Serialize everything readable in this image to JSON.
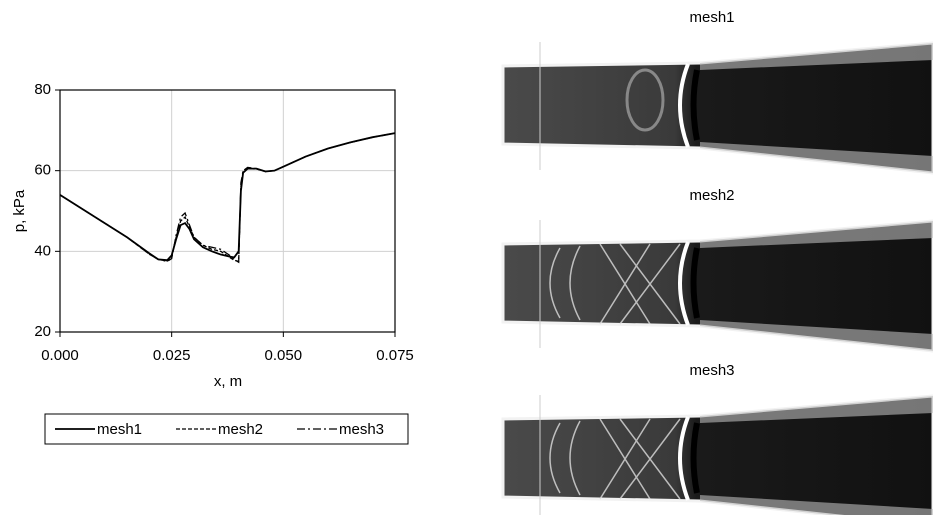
{
  "chart_data": {
    "type": "line",
    "xlabel": "x, m",
    "ylabel": "p, kPa",
    "x": [
      0,
      0.005,
      0.01,
      0.015,
      0.02,
      0.022,
      0.024,
      0.025,
      0.026,
      0.027,
      0.028,
      0.029,
      0.03,
      0.032,
      0.034,
      0.036,
      0.038,
      0.039,
      0.04,
      0.0405,
      0.041,
      0.042,
      0.044,
      0.046,
      0.048,
      0.05,
      0.055,
      0.06,
      0.065,
      0.07,
      0.075
    ],
    "series": [
      {
        "name": "mesh1",
        "color": "#000000",
        "dash": "none",
        "values": [
          54,
          50.5,
          47,
          43.5,
          39.5,
          38,
          37.8,
          39,
          43,
          46.5,
          47,
          45.5,
          43,
          41,
          40,
          39.2,
          38.7,
          38.5,
          40,
          55,
          59.5,
          60.5,
          60.5,
          59.8,
          60,
          61,
          63.5,
          65.5,
          67,
          68.3,
          69.3
        ]
      },
      {
        "name": "mesh2",
        "color": "#000000",
        "dash": "4,2",
        "values": [
          54,
          50.5,
          47,
          43.5,
          39.3,
          38,
          37.6,
          38.5,
          43.5,
          47.5,
          48.5,
          46,
          43.5,
          41.5,
          40.5,
          40,
          38.5,
          37.8,
          37.5,
          56,
          59.8,
          60.5,
          60.4,
          59.8,
          60,
          61,
          63.5,
          65.5,
          67,
          68.3,
          69.3
        ]
      },
      {
        "name": "mesh3",
        "color": "#000000",
        "dash": "8,3,2,3",
        "values": [
          54,
          50.5,
          47,
          43.5,
          39.3,
          38,
          37.5,
          38.2,
          44,
          48.5,
          49.5,
          46.5,
          43.5,
          41.5,
          41,
          40.5,
          39,
          38,
          37.3,
          57,
          60,
          60.8,
          60.5,
          59.8,
          60,
          61,
          63.5,
          65.5,
          67,
          68.3,
          69.3
        ]
      }
    ],
    "xlim": [
      0,
      0.075
    ],
    "ylim": [
      20,
      80
    ],
    "xticks": [
      {
        "value": 0,
        "label": "0.000"
      },
      0.025,
      {
        "value": 0.05,
        "label": "0.050"
      },
      0.075
    ],
    "yticks": [
      20,
      40,
      60,
      80
    ],
    "grid": true
  },
  "panels": {
    "titles": [
      "mesh1",
      "mesh2",
      "mesh3"
    ]
  }
}
